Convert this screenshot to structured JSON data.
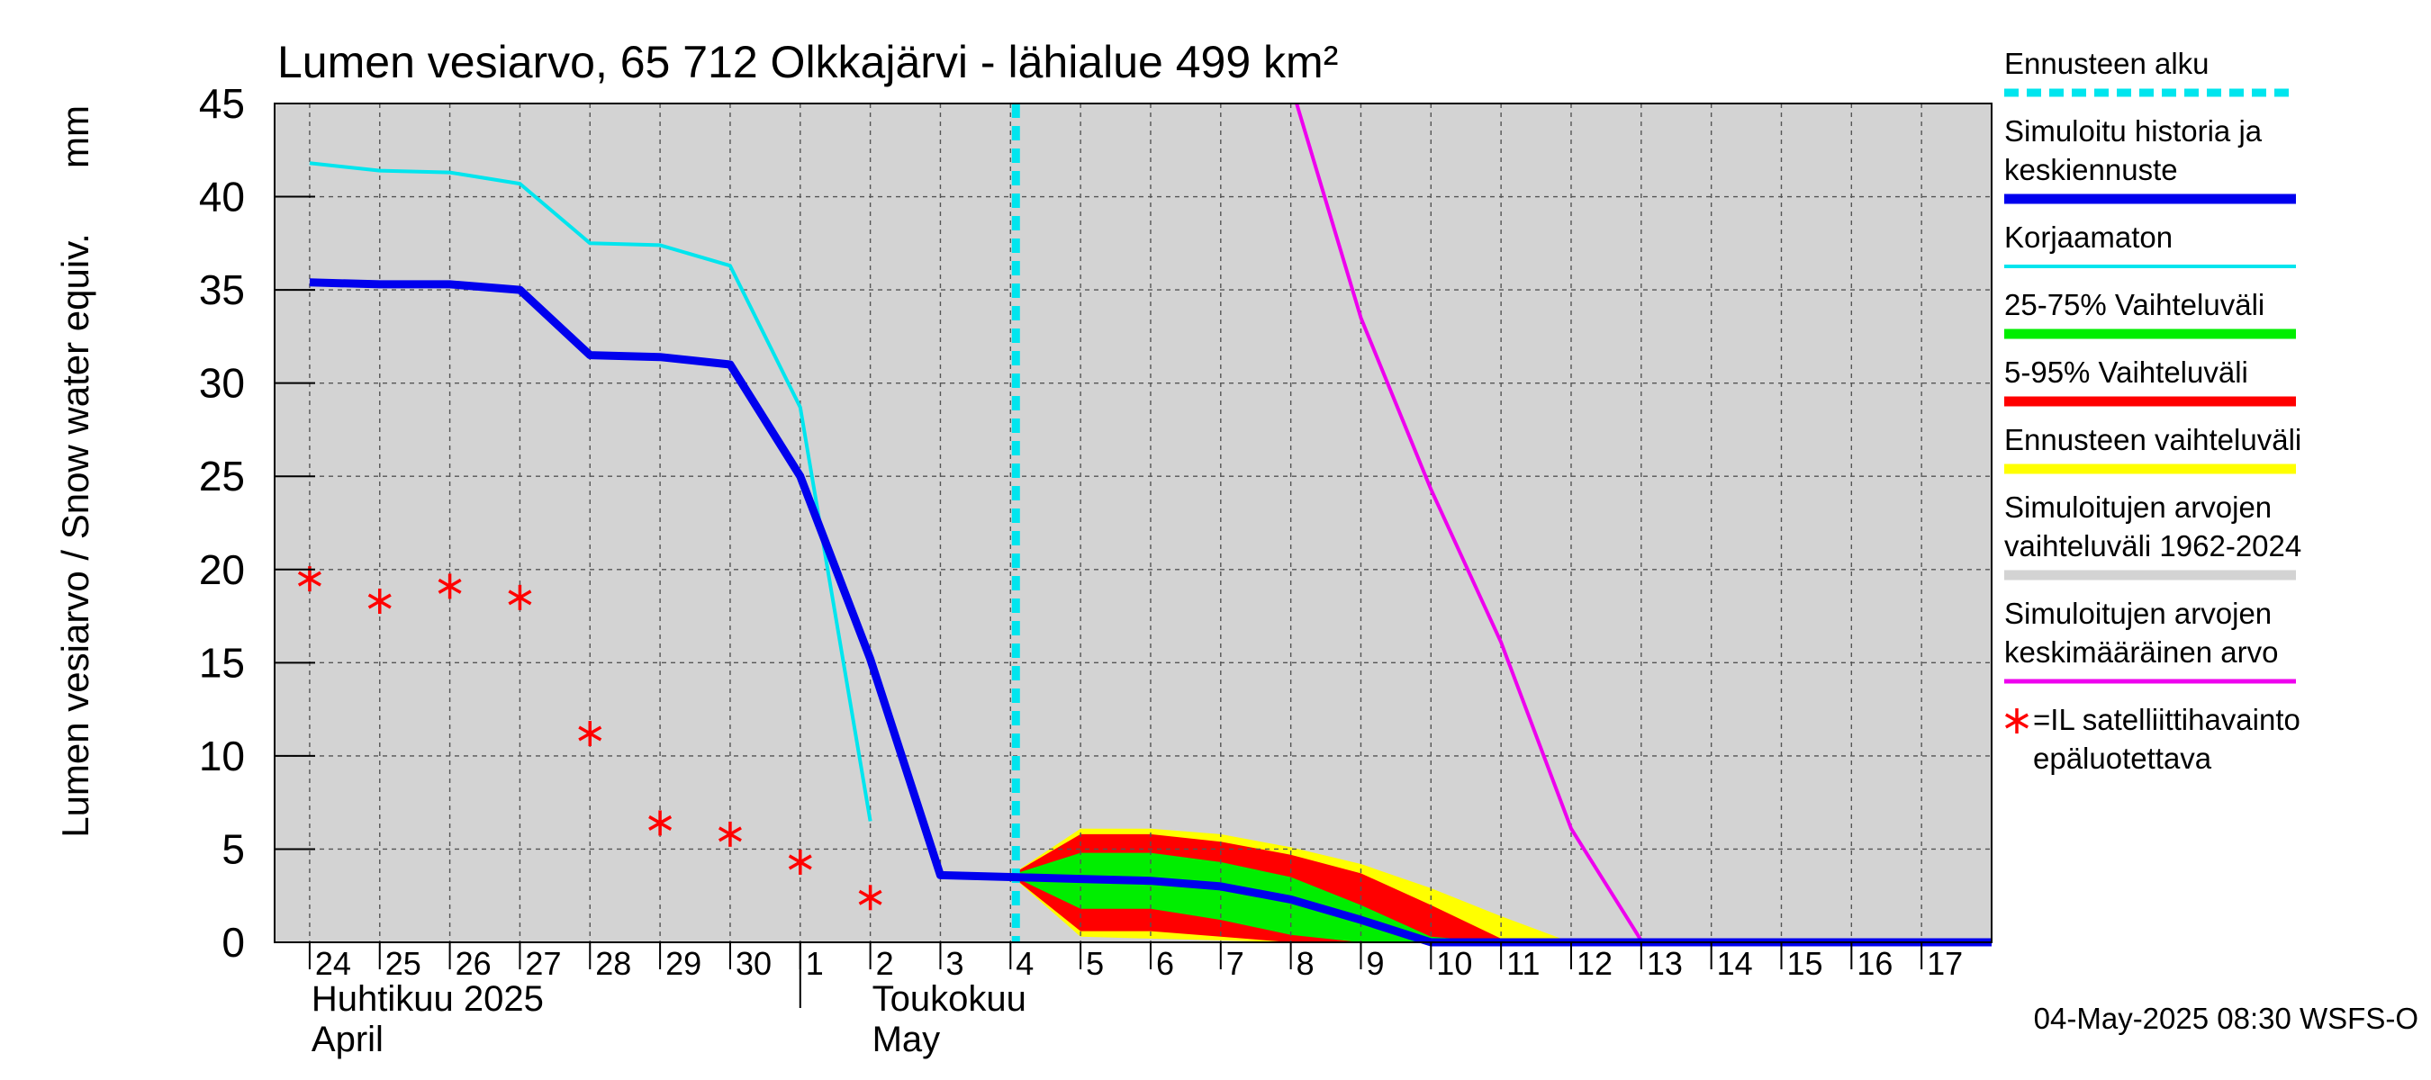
{
  "chart_data": {
    "type": "line",
    "title": "Lumen vesiarvo, 65 712 Olkkajärvi - lähialue 499 km²",
    "ylabel": "Lumen vesiarvo / Snow water equiv.",
    "yunit": "mm",
    "ylim": [
      0,
      45
    ],
    "yticks": [
      0,
      5,
      10,
      15,
      20,
      25,
      30,
      35,
      40,
      45
    ],
    "xlim": [
      "2025-04-23T12:00",
      "2025-05-18T00:00"
    ],
    "grid": true,
    "legend_position": "right",
    "x_tick_labels": [
      {
        "day": "24",
        "date": "2025-04-24"
      },
      {
        "day": "25",
        "date": "2025-04-25"
      },
      {
        "day": "26",
        "date": "2025-04-26"
      },
      {
        "day": "27",
        "date": "2025-04-27"
      },
      {
        "day": "28",
        "date": "2025-04-28"
      },
      {
        "day": "29",
        "date": "2025-04-29"
      },
      {
        "day": "30",
        "date": "2025-04-30"
      },
      {
        "day": "1",
        "date": "2025-05-01"
      },
      {
        "day": "2",
        "date": "2025-05-02"
      },
      {
        "day": "3",
        "date": "2025-05-03"
      },
      {
        "day": "4",
        "date": "2025-05-04"
      },
      {
        "day": "5",
        "date": "2025-05-05"
      },
      {
        "day": "6",
        "date": "2025-05-06"
      },
      {
        "day": "7",
        "date": "2025-05-07"
      },
      {
        "day": "8",
        "date": "2025-05-08"
      },
      {
        "day": "9",
        "date": "2025-05-09"
      },
      {
        "day": "10",
        "date": "2025-05-10"
      },
      {
        "day": "11",
        "date": "2025-05-11"
      },
      {
        "day": "12",
        "date": "2025-05-12"
      },
      {
        "day": "13",
        "date": "2025-05-13"
      },
      {
        "day": "14",
        "date": "2025-05-14"
      },
      {
        "day": "15",
        "date": "2025-05-15"
      },
      {
        "day": "16",
        "date": "2025-05-16"
      },
      {
        "day": "17",
        "date": "2025-05-17"
      }
    ],
    "month_labels": [
      {
        "date": "2025-04-24",
        "line1": "Huhtikuu  2025",
        "line2": "April"
      },
      {
        "date": "2025-05-02",
        "line1": "Toukokuu",
        "line2": "May"
      }
    ],
    "month_boundary": "2025-05-01",
    "forecast_start": "2025-05-04",
    "series": [
      {
        "name": "Simuloitujen arvojen vaihteluväli 1962-2024",
        "kind": "band",
        "color": "#d3d3d3",
        "x": [
          "2025-04-23T12:00",
          "2025-05-18T00:00"
        ],
        "lower": [
          0,
          0
        ],
        "upper": [
          45,
          45
        ]
      },
      {
        "name": "Ennusteen vaihteluväli",
        "kind": "band",
        "color": "#ffff00",
        "x": [
          "2025-05-04",
          "2025-05-05",
          "2025-05-06",
          "2025-05-07",
          "2025-05-08",
          "2025-05-09",
          "2025-05-10",
          "2025-05-11",
          "2025-05-12",
          "2025-05-13"
        ],
        "lower": [
          3.6,
          0.3,
          0.2,
          0.1,
          0,
          0,
          0,
          0,
          0,
          0
        ],
        "upper": [
          3.6,
          6.1,
          6.1,
          5.8,
          5.1,
          4.2,
          2.9,
          1.4,
          0,
          0
        ]
      },
      {
        "name": "5-95% Vaihteluväli",
        "kind": "band",
        "color": "#ff0000",
        "x": [
          "2025-05-04",
          "2025-05-05",
          "2025-05-06",
          "2025-05-07",
          "2025-05-08",
          "2025-05-09",
          "2025-05-10",
          "2025-05-11",
          "2025-05-12"
        ],
        "lower": [
          3.6,
          0.6,
          0.6,
          0.3,
          0,
          0,
          0,
          0,
          0
        ],
        "upper": [
          3.6,
          5.8,
          5.8,
          5.4,
          4.7,
          3.7,
          2.0,
          0.2,
          0
        ]
      },
      {
        "name": "25-75% Vaihteluväli",
        "kind": "band",
        "color": "#00ee00",
        "x": [
          "2025-05-04",
          "2025-05-05",
          "2025-05-06",
          "2025-05-07",
          "2025-05-08",
          "2025-05-09",
          "2025-05-10",
          "2025-05-11"
        ],
        "lower": [
          3.6,
          1.8,
          1.8,
          1.2,
          0.4,
          0,
          0,
          0
        ],
        "upper": [
          3.6,
          4.8,
          4.8,
          4.3,
          3.5,
          2.0,
          0.3,
          0
        ]
      },
      {
        "name": "Simuloitujen arvojen keskimääräinen arvo",
        "kind": "line",
        "color": "#ee00ee",
        "x": [
          "2025-05-08T02:00",
          "2025-05-09",
          "2025-05-10",
          "2025-05-11",
          "2025-05-12",
          "2025-05-13",
          "2025-05-14",
          "2025-05-15",
          "2025-05-16",
          "2025-05-17",
          "2025-05-18"
        ],
        "y": [
          45,
          33.5,
          24.3,
          16.1,
          6.1,
          0.1,
          0.1,
          0.1,
          0.1,
          0.1,
          0.1
        ]
      },
      {
        "name": "Korjaamaton",
        "kind": "line",
        "color": "#00e5ee",
        "x": [
          "2025-04-24",
          "2025-04-25",
          "2025-04-26",
          "2025-04-27",
          "2025-04-28",
          "2025-04-29",
          "2025-04-30",
          "2025-05-01",
          "2025-05-02"
        ],
        "y": [
          41.8,
          41.4,
          41.3,
          40.7,
          37.5,
          37.4,
          36.3,
          28.7,
          6.5
        ]
      },
      {
        "name": "Simuloitu historia ja keskiennuste",
        "kind": "line",
        "color": "#0000ee",
        "x": [
          "2025-04-24",
          "2025-04-25",
          "2025-04-26",
          "2025-04-27",
          "2025-04-28",
          "2025-04-29",
          "2025-04-30",
          "2025-05-01",
          "2025-05-02",
          "2025-05-03",
          "2025-05-04",
          "2025-05-05",
          "2025-05-06",
          "2025-05-07",
          "2025-05-08",
          "2025-05-09",
          "2025-05-10",
          "2025-05-11",
          "2025-05-12",
          "2025-05-13",
          "2025-05-14",
          "2025-05-15",
          "2025-05-16",
          "2025-05-17",
          "2025-05-18"
        ],
        "y": [
          35.4,
          35.3,
          35.3,
          35.0,
          31.5,
          31.4,
          31.0,
          25.0,
          15.2,
          3.6,
          3.5,
          3.4,
          3.3,
          3.0,
          2.3,
          1.2,
          0,
          0,
          0,
          0,
          0,
          0,
          0,
          0,
          0
        ]
      },
      {
        "name": "=IL satelliittihavainto epäluotettava",
        "kind": "scatter",
        "color": "#ff0000",
        "marker": "asterisk",
        "x": [
          "2025-04-24",
          "2025-04-25",
          "2025-04-26",
          "2025-04-27",
          "2025-04-28",
          "2025-04-29",
          "2025-04-30",
          "2025-05-01",
          "2025-05-02"
        ],
        "y": [
          19.5,
          18.3,
          19.1,
          18.5,
          11.2,
          6.4,
          5.8,
          4.3,
          2.4
        ]
      }
    ],
    "legend": [
      {
        "lines": [
          "Ennusteen alku"
        ],
        "color": "#00e5ee",
        "style": "dashed"
      },
      {
        "lines": [
          "Simuloitu historia ja",
          "keskiennuste"
        ],
        "color": "#0000ee",
        "style": "thick"
      },
      {
        "lines": [
          "Korjaamaton"
        ],
        "color": "#00e5ee",
        "style": "thin"
      },
      {
        "lines": [
          "25-75% Vaihteluväli"
        ],
        "color": "#00ee00",
        "style": "thick"
      },
      {
        "lines": [
          "5-95% Vaihteluväli"
        ],
        "color": "#ff0000",
        "style": "thick"
      },
      {
        "lines": [
          "Ennusteen vaihteluväli"
        ],
        "color": "#ffff00",
        "style": "thick"
      },
      {
        "lines": [
          "Simuloitujen arvojen",
          "vaihteluväli 1962-2024"
        ],
        "color": "#d3d3d3",
        "style": "thick"
      },
      {
        "lines": [
          "Simuloitujen arvojen",
          "keskimääräinen arvo"
        ],
        "color": "#ee00ee",
        "style": "medium"
      },
      {
        "lines": [
          "=IL satelliittihavainto",
          "epäluotettava"
        ],
        "color": "#ff0000",
        "style": "asterisk"
      }
    ],
    "footer": "04-May-2025 08:30 WSFS-O"
  }
}
